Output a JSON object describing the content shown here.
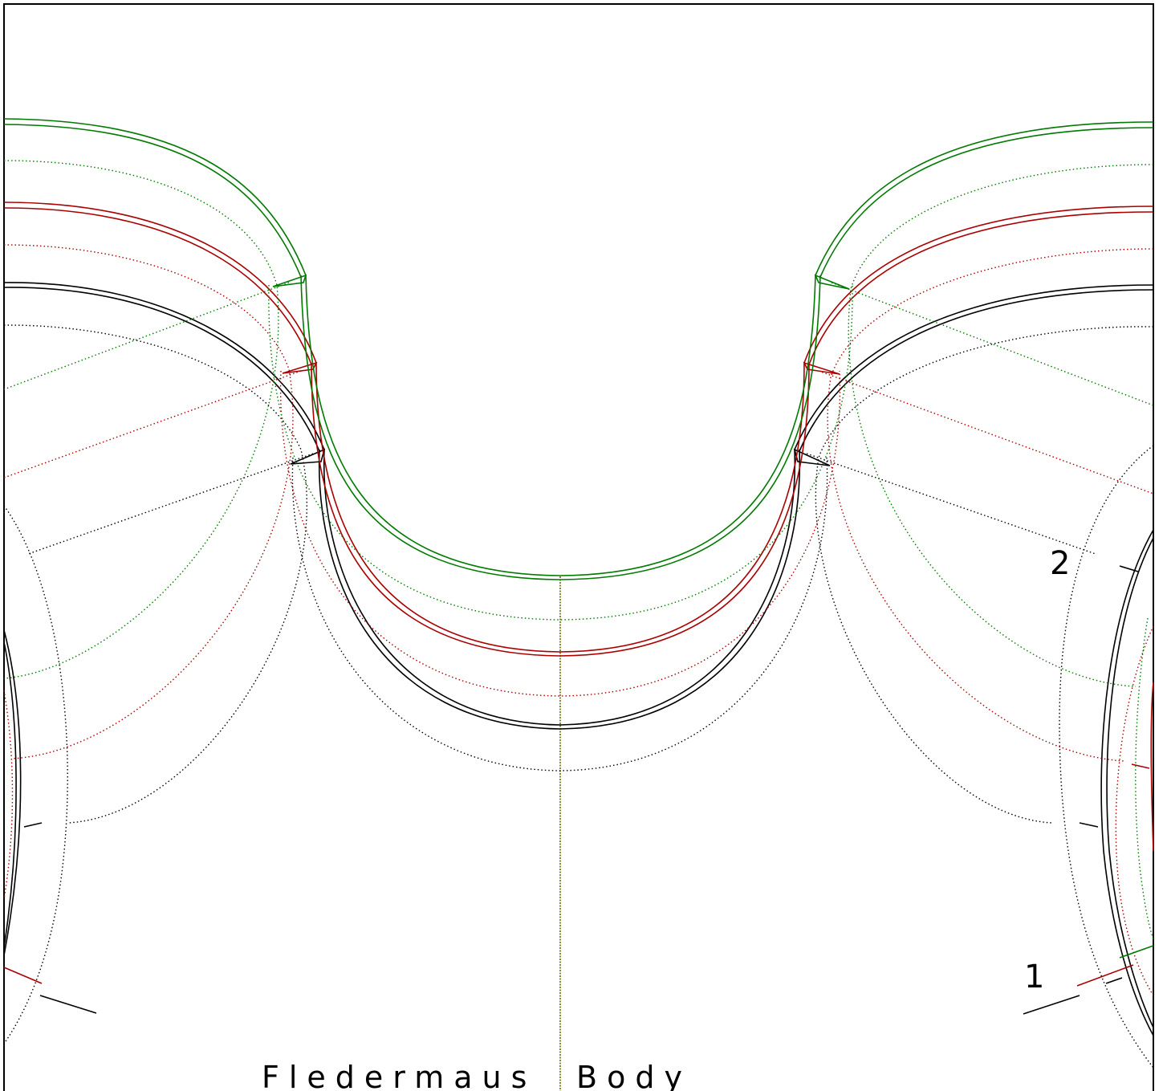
{
  "pattern": {
    "title_word_1": "Fledermaus",
    "title_word_2": "Body",
    "size_labels": [
      "1",
      "2"
    ]
  },
  "colors": {
    "black": "#000000",
    "red": "#aa0000",
    "green": "#007a00",
    "frame": "#000000"
  },
  "sizes": [
    {
      "color_key": "black"
    },
    {
      "color_key": "red"
    },
    {
      "color_key": "green"
    }
  ]
}
